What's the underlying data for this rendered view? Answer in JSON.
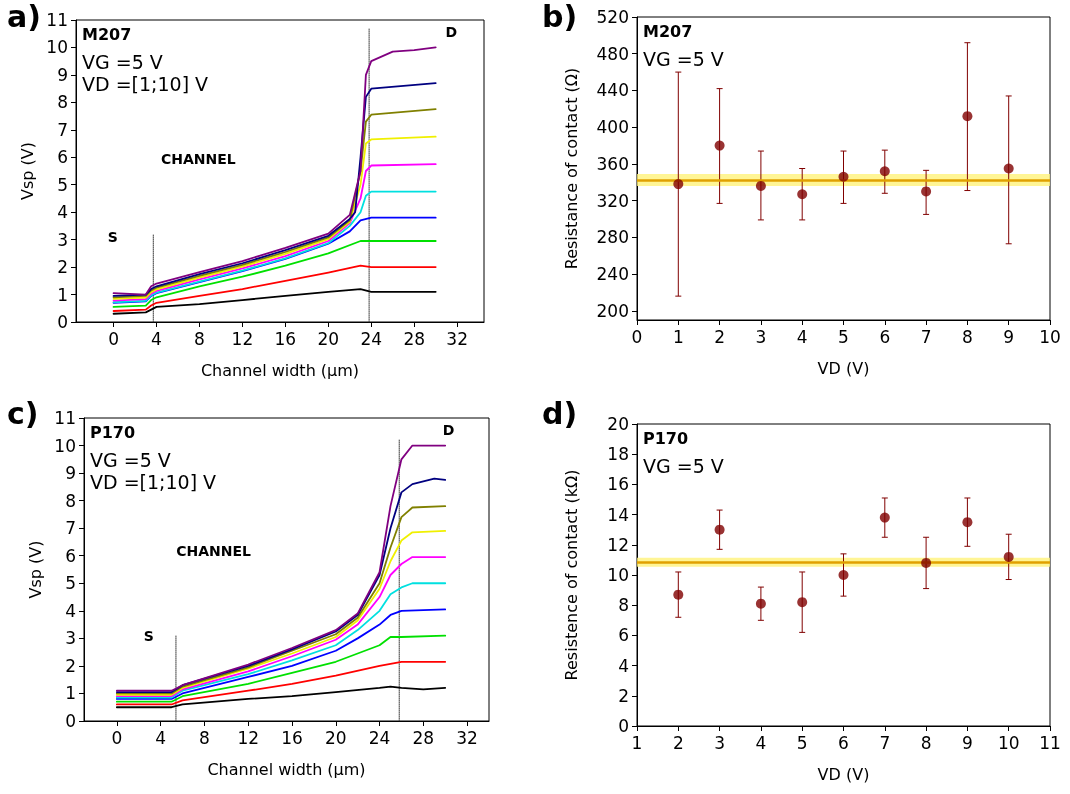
{
  "chart_data": [
    {
      "type": "line",
      "title": "a)",
      "xlabel": "Channel width (μm)",
      "ylabel": "Vsp (V)",
      "annotations": [
        "M207",
        "VG =5 V",
        "VD =[1;10] V",
        "S",
        "CHANNEL",
        "D"
      ],
      "xlim": [
        -3.5,
        34.5
      ],
      "xticks": [
        0,
        4,
        8,
        12,
        16,
        20,
        24,
        28,
        32
      ],
      "ylim": [
        0,
        11
      ],
      "yticks": [
        0,
        1,
        2,
        3,
        4,
        5,
        6,
        7,
        8,
        9,
        10,
        11
      ],
      "series": [
        {
          "color": "#000000",
          "x": [
            0,
            3,
            3.5,
            4,
            8,
            12,
            16,
            20,
            23,
            24,
            30
          ],
          "values": [
            0.3,
            0.35,
            0.45,
            0.55,
            0.65,
            0.8,
            0.95,
            1.1,
            1.2,
            1.1,
            1.1
          ]
        },
        {
          "color": "#ff0000",
          "x": [
            0,
            3,
            3.5,
            4,
            8,
            12,
            16,
            20,
            23,
            24,
            30
          ],
          "values": [
            0.4,
            0.45,
            0.6,
            0.7,
            0.95,
            1.2,
            1.5,
            1.8,
            2.05,
            2.0,
            2.0
          ]
        },
        {
          "color": "#00e000",
          "x": [
            0,
            3,
            3.5,
            4,
            8,
            12,
            16,
            20,
            23,
            24,
            30
          ],
          "values": [
            0.55,
            0.6,
            0.8,
            0.9,
            1.3,
            1.65,
            2.05,
            2.5,
            2.95,
            2.95,
            2.95
          ]
        },
        {
          "color": "#0000ff",
          "x": [
            0,
            3,
            3.5,
            4,
            8,
            12,
            16,
            20,
            22,
            23,
            24,
            30
          ],
          "values": [
            0.7,
            0.75,
            0.95,
            1.05,
            1.45,
            1.85,
            2.3,
            2.85,
            3.3,
            3.7,
            3.8,
            3.8
          ]
        },
        {
          "color": "#00e0e0",
          "x": [
            0,
            3,
            3.5,
            4,
            8,
            12,
            16,
            20,
            22,
            23,
            23.5,
            24,
            30
          ],
          "values": [
            0.72,
            0.77,
            0.97,
            1.07,
            1.47,
            1.87,
            2.32,
            2.87,
            3.5,
            4.0,
            4.6,
            4.75,
            4.75
          ]
        },
        {
          "color": "#ff00ff",
          "x": [
            0,
            3,
            3.5,
            4,
            8,
            12,
            16,
            20,
            22,
            23,
            23.5,
            24,
            30
          ],
          "values": [
            0.78,
            0.83,
            1.03,
            1.13,
            1.55,
            1.95,
            2.4,
            2.95,
            3.6,
            4.5,
            5.5,
            5.7,
            5.75
          ]
        },
        {
          "color": "#f0f000",
          "x": [
            0,
            3,
            3.5,
            4,
            8,
            12,
            16,
            20,
            22,
            23,
            23.5,
            24,
            30
          ],
          "values": [
            0.84,
            0.89,
            1.09,
            1.19,
            1.62,
            2.02,
            2.48,
            3.02,
            3.65,
            5.0,
            6.5,
            6.65,
            6.75
          ]
        },
        {
          "color": "#808000",
          "x": [
            0,
            3,
            3.5,
            4,
            8,
            12,
            16,
            20,
            22,
            23,
            23.5,
            24,
            30
          ],
          "values": [
            0.9,
            0.95,
            1.15,
            1.25,
            1.68,
            2.08,
            2.55,
            3.08,
            3.7,
            5.5,
            7.3,
            7.55,
            7.75
          ]
        },
        {
          "color": "#000080",
          "x": [
            0,
            3,
            3.5,
            4,
            8,
            12,
            16,
            20,
            22,
            22.5,
            23,
            23.5,
            24,
            30
          ],
          "values": [
            0.95,
            1.0,
            1.2,
            1.3,
            1.74,
            2.14,
            2.62,
            3.14,
            3.75,
            4.0,
            6.0,
            8.2,
            8.5,
            8.7
          ]
        },
        {
          "color": "#800080",
          "x": [
            0,
            3,
            3.5,
            4,
            8,
            12,
            16,
            20,
            22,
            23,
            23.5,
            24,
            26,
            28,
            30
          ],
          "values": [
            1.05,
            1.0,
            1.3,
            1.4,
            1.82,
            2.22,
            2.7,
            3.22,
            3.9,
            5.5,
            9.0,
            9.5,
            9.85,
            9.9,
            10.0
          ]
        },
        {
          "color": "#404040",
          "line_style": "dotted",
          "x": [
            3.7,
            3.7
          ],
          "values": [
            0,
            3.2
          ]
        },
        {
          "color": "#404040",
          "line_style": "dotted",
          "x": [
            23.8,
            23.8
          ],
          "values": [
            0,
            10.7
          ]
        }
      ]
    },
    {
      "type": "scatter",
      "title": "b)",
      "xlabel": "VD (V)",
      "ylabel": "Resistance of contact (Ω)",
      "marker": "circle",
      "annotations": [
        "M207",
        "VG =5 V"
      ],
      "xlim": [
        0,
        10
      ],
      "xticks": [
        0,
        1,
        2,
        3,
        4,
        5,
        6,
        7,
        8,
        9,
        10
      ],
      "ylim": [
        190,
        520
      ],
      "yticks": [
        200,
        240,
        280,
        320,
        360,
        400,
        440,
        480,
        520
      ],
      "series": [
        {
          "color": "#800000",
          "x": [
            1,
            2,
            3,
            4,
            5,
            6,
            7,
            8,
            9
          ],
          "values": [
            338,
            380,
            336,
            327,
            346,
            352,
            330,
            412,
            355
          ],
          "errors": [
            [
              216,
              460
            ],
            [
              317,
              442
            ],
            [
              299,
              374
            ],
            [
              299,
              355
            ],
            [
              317,
              374
            ],
            [
              328,
              375
            ],
            [
              305,
              353
            ],
            [
              331,
              492
            ],
            [
              273,
              434
            ]
          ]
        }
      ],
      "bands": [
        {
          "axis": "y",
          "from": 336,
          "to": 349,
          "color": "#fff27a"
        }
      ],
      "ref_lines": [
        {
          "axis": "y",
          "value": 342,
          "color": "#e0a000"
        }
      ]
    },
    {
      "type": "line",
      "title": "c)",
      "xlabel": "Channel width (μm)",
      "ylabel": "Vsp (V)",
      "annotations": [
        "P170",
        "VG =5 V",
        "VD =[1;10] V",
        "S",
        "CHANNEL",
        "D"
      ],
      "xlim": [
        -3,
        34
      ],
      "xticks": [
        0,
        4,
        8,
        12,
        16,
        20,
        24,
        28,
        32
      ],
      "ylim": [
        0,
        11
      ],
      "yticks": [
        0,
        1,
        2,
        3,
        4,
        5,
        6,
        7,
        8,
        9,
        10,
        11
      ],
      "series": [
        {
          "color": "#000000",
          "x": [
            0,
            5,
            6,
            12,
            16,
            20,
            24,
            25,
            26,
            28,
            30
          ],
          "values": [
            0.5,
            0.5,
            0.6,
            0.8,
            0.9,
            1.05,
            1.2,
            1.25,
            1.2,
            1.15,
            1.2
          ]
        },
        {
          "color": "#ff0000",
          "x": [
            0,
            5,
            6,
            12,
            16,
            20,
            24,
            26,
            30
          ],
          "values": [
            0.6,
            0.6,
            0.75,
            1.1,
            1.35,
            1.65,
            2.0,
            2.15,
            2.15
          ]
        },
        {
          "color": "#00e000",
          "x": [
            0,
            5,
            6,
            12,
            16,
            20,
            24,
            25,
            26,
            30
          ],
          "values": [
            0.7,
            0.7,
            0.9,
            1.35,
            1.75,
            2.15,
            2.75,
            3.05,
            3.05,
            3.1
          ]
        },
        {
          "color": "#0000ff",
          "x": [
            0,
            5,
            6,
            12,
            16,
            20,
            22,
            24,
            25,
            26,
            30
          ],
          "values": [
            0.8,
            0.8,
            1.0,
            1.6,
            2.0,
            2.55,
            3.0,
            3.5,
            3.85,
            4.0,
            4.05
          ]
        },
        {
          "color": "#00e0e0",
          "x": [
            0,
            5,
            6,
            12,
            16,
            20,
            22,
            24,
            25,
            26,
            27,
            30
          ],
          "values": [
            0.85,
            0.85,
            1.1,
            1.7,
            2.2,
            2.75,
            3.3,
            4.0,
            4.6,
            4.85,
            5.0,
            5.0
          ]
        },
        {
          "color": "#ff00ff",
          "x": [
            0,
            5,
            6,
            12,
            16,
            20,
            22,
            24,
            25,
            26,
            27,
            30
          ],
          "values": [
            0.9,
            0.9,
            1.15,
            1.8,
            2.35,
            2.95,
            3.5,
            4.5,
            5.3,
            5.7,
            5.95,
            5.95
          ]
        },
        {
          "color": "#f0f000",
          "x": [
            0,
            5,
            6,
            12,
            16,
            20,
            22,
            24,
            25,
            26,
            27,
            30
          ],
          "values": [
            0.95,
            0.95,
            1.2,
            1.9,
            2.45,
            3.05,
            3.65,
            4.8,
            5.8,
            6.55,
            6.85,
            6.9
          ]
        },
        {
          "color": "#808000",
          "x": [
            0,
            5,
            6,
            12,
            16,
            20,
            22,
            24,
            25,
            26,
            27,
            30
          ],
          "values": [
            1.0,
            1.0,
            1.25,
            1.95,
            2.55,
            3.15,
            3.75,
            5.0,
            6.3,
            7.4,
            7.75,
            7.8
          ]
        },
        {
          "color": "#000080",
          "x": [
            0,
            5,
            6,
            12,
            16,
            20,
            22,
            24,
            25,
            26,
            27,
            29,
            30
          ],
          "values": [
            1.05,
            1.05,
            1.3,
            2.0,
            2.6,
            3.25,
            3.85,
            5.3,
            7.0,
            8.3,
            8.6,
            8.8,
            8.75
          ]
        },
        {
          "color": "#800080",
          "x": [
            0,
            5,
            6,
            12,
            16,
            20,
            22,
            24,
            25,
            26,
            27,
            30
          ],
          "values": [
            1.1,
            1.1,
            1.3,
            2.05,
            2.65,
            3.3,
            3.9,
            5.4,
            7.8,
            9.5,
            10.0,
            10.0
          ]
        },
        {
          "color": "#404040",
          "line_style": "dotted",
          "x": [
            5.4,
            5.4
          ],
          "values": [
            0,
            3.1
          ]
        },
        {
          "color": "#404040",
          "line_style": "dotted",
          "x": [
            25.8,
            25.8
          ],
          "values": [
            0,
            10.2
          ]
        }
      ]
    },
    {
      "type": "scatter",
      "title": "d)",
      "xlabel": "VD (V)",
      "ylabel": "Resistence of contact (kΩ)",
      "marker": "circle",
      "annotations": [
        "P170",
        "VG =5 V"
      ],
      "xlim": [
        1,
        11
      ],
      "xticks": [
        1,
        2,
        3,
        4,
        5,
        6,
        7,
        8,
        9,
        10,
        11
      ],
      "ylim": [
        0,
        20
      ],
      "yticks": [
        0,
        2,
        4,
        6,
        8,
        10,
        12,
        14,
        16,
        18,
        20
      ],
      "series": [
        {
          "color": "#800000",
          "x": [
            2,
            3,
            4,
            5,
            6,
            7,
            8,
            9,
            10
          ],
          "values": [
            8.7,
            13.0,
            8.1,
            8.2,
            10.0,
            13.8,
            10.8,
            13.5,
            11.2
          ],
          "errors": [
            [
              7.2,
              10.2
            ],
            [
              11.7,
              14.3
            ],
            [
              7.0,
              9.2
            ],
            [
              6.2,
              10.2
            ],
            [
              8.6,
              11.4
            ],
            [
              12.5,
              15.1
            ],
            [
              9.1,
              12.5
            ],
            [
              11.9,
              15.1
            ],
            [
              9.7,
              12.7
            ]
          ]
        }
      ],
      "bands": [
        {
          "axis": "y",
          "from": 10.55,
          "to": 11.15,
          "color": "#fff27a"
        }
      ],
      "ref_lines": [
        {
          "axis": "y",
          "value": 10.85,
          "color": "#e0a000"
        }
      ]
    }
  ]
}
